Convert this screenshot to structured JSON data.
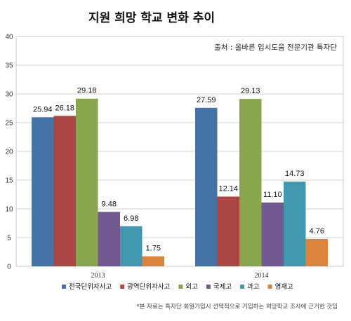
{
  "chart_data": {
    "type": "bar",
    "title": "지원 희망 학교 변화 추이",
    "source": "출처 : 올바른 입시도움 전문기관 특자단",
    "footnote": "*본 자료는 특자단 회원가입시 선택적으로 기입하는 희망학교 조사에 근거한 것임",
    "categories": [
      "2013",
      "2014"
    ],
    "ylim": [
      0,
      40
    ],
    "yticks": [
      0,
      5,
      10,
      15,
      20,
      25,
      30,
      35,
      40
    ],
    "grid": true,
    "legend_position": "bottom",
    "series": [
      {
        "name": "전국단위자사고",
        "color": "#4572A7",
        "values": [
          25.94,
          27.59
        ],
        "labels": [
          "25.94",
          "27.59"
        ]
      },
      {
        "name": "광역단위자사고",
        "color": "#AA4643",
        "values": [
          26.18,
          12.14
        ],
        "labels": [
          "26.18",
          "12.14"
        ]
      },
      {
        "name": "외고",
        "color": "#89A54E",
        "values": [
          29.18,
          29.13
        ],
        "labels": [
          "29.18",
          "29.13"
        ]
      },
      {
        "name": "국제고",
        "color": "#71588F",
        "values": [
          9.48,
          11.1
        ],
        "labels": [
          "9.48",
          "11.10"
        ]
      },
      {
        "name": "과고",
        "color": "#4198AF",
        "values": [
          6.98,
          14.73
        ],
        "labels": [
          "6.98",
          "14.73"
        ]
      },
      {
        "name": "영재고",
        "color": "#DB843D",
        "values": [
          1.75,
          4.76
        ],
        "labels": [
          "1.75",
          "4.76"
        ]
      }
    ]
  }
}
